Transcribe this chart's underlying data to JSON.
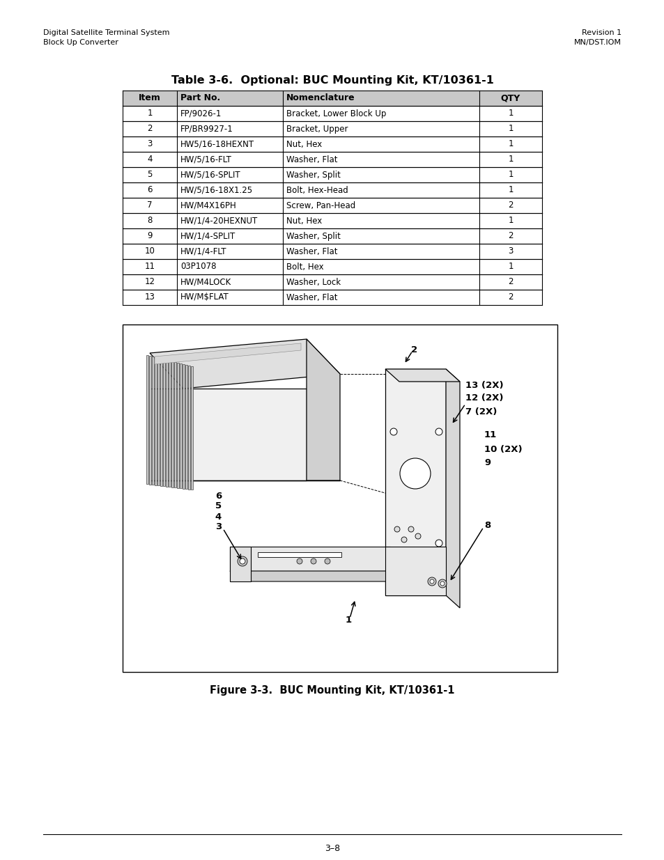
{
  "page_title_left_line1": "Digital Satellite Terminal System",
  "page_title_left_line2": "Block Up Converter",
  "page_title_right_line1": "Revision 1",
  "page_title_right_line2": "MN/DST.IOM",
  "table_title": "Table 3-6.  Optional: BUC Mounting Kit, KT/10361-1",
  "table_headers": [
    "Item",
    "Part No.",
    "Nomenclature",
    "QTY"
  ],
  "table_data": [
    [
      "1",
      "FP/9026-1",
      "Bracket, Lower Block Up",
      "1"
    ],
    [
      "2",
      "FP/BR9927-1",
      "Bracket, Upper",
      "1"
    ],
    [
      "3",
      "HW5/16-18HEXNT",
      "Nut, Hex",
      "1"
    ],
    [
      "4",
      "HW/5/16-FLT",
      "Washer, Flat",
      "1"
    ],
    [
      "5",
      "HW/5/16-SPLIT",
      "Washer, Split",
      "1"
    ],
    [
      "6",
      "HW/5/16-18X1.25",
      "Bolt, Hex-Head",
      "1"
    ],
    [
      "7",
      "HW/M4X16PH",
      "Screw, Pan-Head",
      "2"
    ],
    [
      "8",
      "HW/1/4-20HEXNUT",
      "Nut, Hex",
      "1"
    ],
    [
      "9",
      "HW/1/4-SPLIT",
      "Washer, Split",
      "2"
    ],
    [
      "10",
      "HW/1/4-FLT",
      "Washer, Flat",
      "3"
    ],
    [
      "11",
      "03P1078",
      "Bolt, Hex",
      "1"
    ],
    [
      "12",
      "HW/M4LOCK",
      "Washer, Lock",
      "2"
    ],
    [
      "13",
      "HW/M$FLAT",
      "Washer, Flat",
      "2"
    ]
  ],
  "figure_caption": "Figure 3-3.  BUC Mounting Kit, KT/10361-1",
  "page_number": "3–8",
  "bg_color": "#ffffff",
  "text_color": "#000000",
  "table_header_bg": "#c8c8c8"
}
